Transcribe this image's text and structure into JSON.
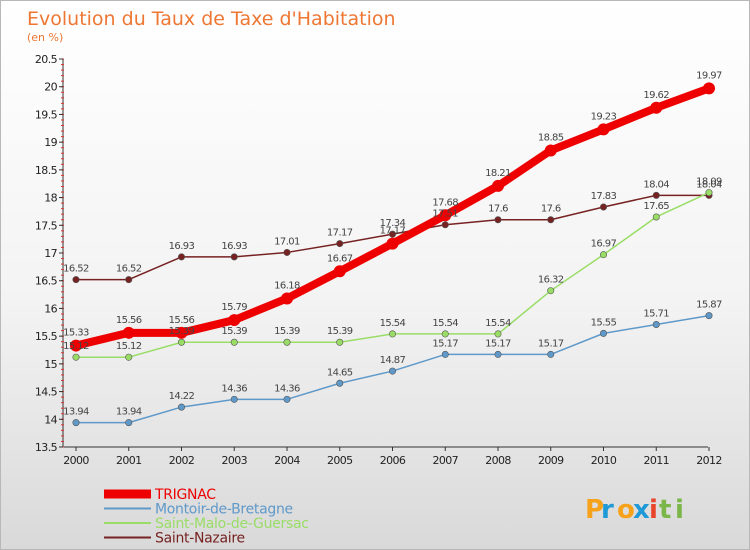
{
  "chart_data": {
    "type": "line",
    "title": "Evolution du Taux de Taxe d'Habitation",
    "subtitle": "(en %)",
    "x": [
      "2000",
      "2001",
      "2002",
      "2003",
      "2004",
      "2005",
      "2006",
      "2007",
      "2008",
      "2009",
      "2010",
      "2011",
      "2012"
    ],
    "y_ticks": [
      "13.5",
      "14",
      "14.5",
      "15",
      "15.5",
      "16",
      "16.5",
      "17",
      "17.5",
      "18",
      "18.5",
      "19",
      "19.5",
      "20",
      "20.5"
    ],
    "ylim": [
      13.5,
      20.5
    ],
    "grid": false,
    "legend_position": "bottom-left",
    "series": [
      {
        "name": "TRIGNAC",
        "color": "#ee0000",
        "values": [
          15.33,
          15.56,
          15.56,
          15.79,
          16.18,
          16.67,
          17.17,
          17.68,
          18.21,
          18.85,
          19.23,
          19.62,
          19.97
        ],
        "labels": [
          "15.33",
          "15.56",
          "15.56",
          "15.79",
          "16.18",
          "16.67",
          "17.17",
          "17.68",
          "18.21",
          "18.85",
          "19.23",
          "19.62",
          "19.97"
        ]
      },
      {
        "name": "Montoir-de-Bretagne",
        "color": "#5f99c9",
        "values": [
          13.94,
          13.94,
          14.22,
          14.36,
          14.36,
          14.65,
          14.87,
          15.17,
          15.17,
          15.17,
          15.55,
          15.71,
          15.87
        ],
        "labels": [
          "13.94",
          "13.94",
          "14.22",
          "14.36",
          "14.36",
          "14.65",
          "14.87",
          "15.17",
          "15.17",
          "15.17",
          "15.55",
          "15.71",
          "15.87"
        ]
      },
      {
        "name": "Saint-Malo-de-Guersac",
        "color": "#99dd66",
        "values": [
          15.12,
          15.12,
          15.39,
          15.39,
          15.39,
          15.39,
          15.54,
          15.54,
          15.54,
          16.32,
          16.97,
          17.65,
          18.09
        ],
        "labels": [
          "15.12",
          "15.12",
          "15.39",
          "15.39",
          "15.39",
          "15.39",
          "15.54",
          "15.54",
          "15.54",
          "16.32",
          "16.97",
          "17.65",
          "18.09"
        ]
      },
      {
        "name": "Saint-Nazaire",
        "color": "#772222",
        "values": [
          16.52,
          16.52,
          16.93,
          16.93,
          17.01,
          17.17,
          17.34,
          17.51,
          17.6,
          17.6,
          17.83,
          18.04,
          18.04
        ],
        "labels": [
          "16.52",
          "16.52",
          "16.93",
          "16.93",
          "17.01",
          "17.17",
          "17.34",
          "17.51",
          "17.6",
          "17.6",
          "17.83",
          "18.04",
          "18.04"
        ]
      }
    ]
  },
  "brand": {
    "text": "Proxiti",
    "letters": [
      "P",
      "r",
      "o",
      "x",
      "i",
      "t",
      "i"
    ],
    "colors": [
      "#f7a21b",
      "#1f9ad6",
      "#f7a21b",
      "#1f9ad6",
      "#e8452c",
      "#7ab648",
      "#7ab648"
    ]
  }
}
